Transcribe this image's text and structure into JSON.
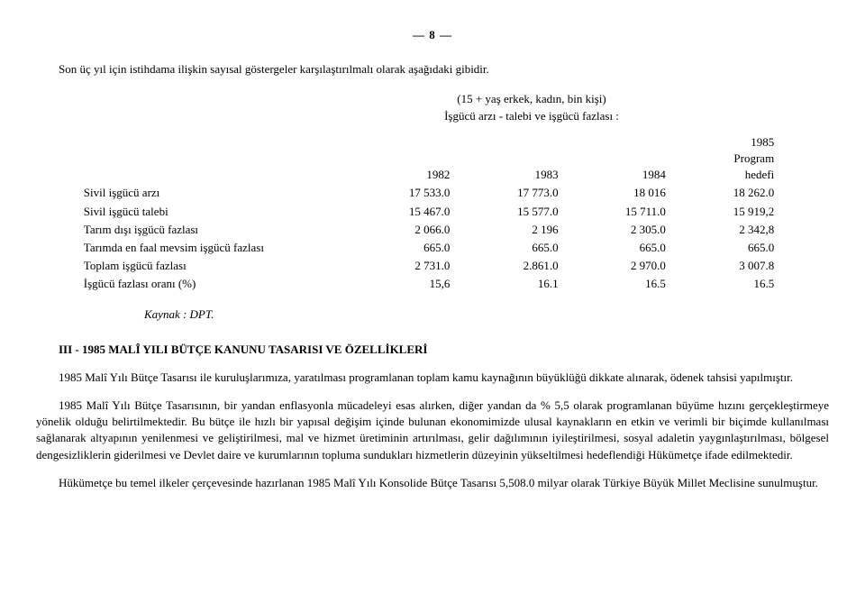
{
  "page_number": "— 8 —",
  "intro": "Son üç yıl için istihdama ilişkin sayısal göstergeler karşılaştırılmalı olarak aşağıdaki gibidir.",
  "sub_header": {
    "line1": "(15 + yaş erkek, kadın, bin kişi)",
    "line2": "İşgücü arzı - talebi ve işgücü fazlası :"
  },
  "columns": {
    "c1": "1982",
    "c2": "1983",
    "c3": "1984",
    "c4_top": "1985",
    "c4_mid": "Program",
    "c4_bot": "hedefi"
  },
  "rows": [
    {
      "label": "Sivil işgücü arzı",
      "c1": "17 533.0",
      "c2": "17 773.0",
      "c3": "18 016",
      "c4": "18 262.0"
    },
    {
      "label": "Sivil işgücü talebi",
      "c1": "15 467.0",
      "c2": "15 577.0",
      "c3": "15 711.0",
      "c4": "15 919,2"
    },
    {
      "label": "Tarım dışı işgücü fazlası",
      "c1": "2 066.0",
      "c2": "2 196",
      "c3": "2 305.0",
      "c4": "2 342,8"
    },
    {
      "label": "Tarımda en faal mevsim işgücü fazlası",
      "c1": "665.0",
      "c2": "665.0",
      "c3": "665.0",
      "c4": "665.0"
    },
    {
      "label": "Toplam işgücü fazlası",
      "c1": "2 731.0",
      "c2": "2.861.0",
      "c3": "2 970.0",
      "c4": "3 007.8"
    },
    {
      "label": "İşgücü fazlası oranı (%)",
      "c1": "15,6",
      "c2": "16.1",
      "c3": "16.5",
      "c4": "16.5"
    }
  ],
  "kaynak": "Kaynak : DPT.",
  "section_title": "III - 1985 MALÎ YILI BÜTÇE KANUNU TASARISI VE ÖZELLİKLERİ",
  "body_paragraphs": [
    "1985 Malî Yılı Bütçe Tasarısı ile kuruluşlarımıza, yaratılması programlanan toplam kamu   kaynağının büyüklüğü dikkate alınarak, ödenek tahsisi yapılmıştır.",
    "1985 Malî Yılı Bütçe Tasarısının, bir yandan enflasyonla mücadeleyi esas alırken, diğer   yandan da % 5,5 olarak programlanan büyüme hızını gerçekleştirmeye yönelik olduğu belirtilmektedir. Bu bütçe ile hızlı bir yapısal değişim içinde bulunan ekonomimizde ulusal kaynakların en etkin ve verimli bir biçimde kullanılması sağlanarak altyapının yenilenmesi ve geliştirilmesi, mal ve hizmet üretiminin artırılması, gelir dağılımının iyileştirilmesi, sosyal adaletin yaygınlaştırılması, bölgesel dengesizliklerin giderilmesi ve Devlet daire ve kurumlarının topluma sundukları hizmetlerin düzeyinin yükseltilmesi hedeflendiği Hükümetçe ifade edilmektedir.",
    "Hükümetçe bu temel ilkeler çerçevesinde hazırlanan 1985 Malî Yılı Konsolide Bütçe Tasarısı 5,508.0 milyar olarak Türkiye Büyük Millet Meclisine sunulmuştur."
  ]
}
